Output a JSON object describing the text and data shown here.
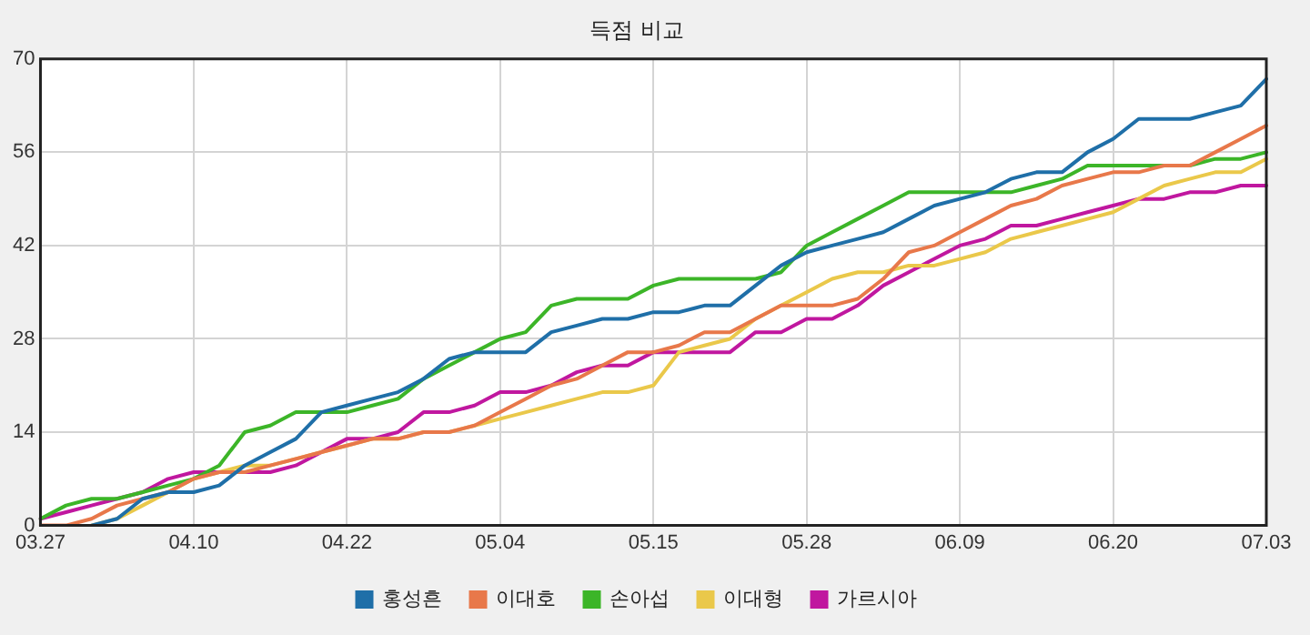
{
  "chart_data": {
    "type": "line",
    "title": "득점 비교",
    "categories": [
      "03.27",
      null,
      null,
      null,
      null,
      null,
      "04.10",
      null,
      null,
      null,
      null,
      null,
      "04.22",
      null,
      null,
      null,
      null,
      null,
      "05.04",
      null,
      null,
      null,
      null,
      null,
      "05.15",
      null,
      null,
      null,
      null,
      null,
      "05.28",
      null,
      null,
      null,
      null,
      null,
      "06.09",
      null,
      null,
      null,
      null,
      null,
      "06.20",
      null,
      null,
      null,
      null,
      null,
      "07.03"
    ],
    "series": [
      {
        "name": "홍성흔",
        "color": "#1f6fa8",
        "values": [
          null,
          null,
          0,
          1,
          4,
          5,
          5,
          6,
          9,
          11,
          13,
          17,
          18,
          19,
          20,
          22,
          25,
          26,
          26,
          26,
          29,
          30,
          31,
          31,
          32,
          32,
          33,
          33,
          36,
          39,
          41,
          42,
          43,
          44,
          46,
          48,
          49,
          50,
          52,
          53,
          53,
          56,
          58,
          61,
          61,
          61,
          62,
          63,
          67
        ]
      },
      {
        "name": "이대호",
        "color": "#e8784a",
        "values": [
          0,
          0,
          1,
          3,
          4,
          5,
          7,
          8,
          8,
          9,
          10,
          11,
          12,
          13,
          13,
          14,
          14,
          15,
          17,
          19,
          21,
          22,
          24,
          26,
          26,
          27,
          29,
          29,
          31,
          33,
          33,
          33,
          34,
          37,
          41,
          42,
          44,
          46,
          48,
          49,
          51,
          52,
          53,
          53,
          54,
          54,
          56,
          58,
          60
        ]
      },
      {
        "name": "손아섭",
        "color": "#3cb528",
        "values": [
          1,
          3,
          4,
          4,
          5,
          6,
          7,
          9,
          14,
          15,
          17,
          17,
          17,
          18,
          19,
          22,
          24,
          26,
          28,
          29,
          33,
          34,
          34,
          34,
          36,
          37,
          37,
          37,
          37,
          38,
          42,
          44,
          46,
          48,
          50,
          50,
          50,
          50,
          50,
          51,
          52,
          54,
          54,
          54,
          54,
          54,
          55,
          55,
          56
        ]
      },
      {
        "name": "이대형",
        "color": "#eac84a",
        "values": [
          null,
          null,
          0,
          1,
          3,
          5,
          7,
          8,
          9,
          9,
          10,
          11,
          12,
          13,
          13,
          14,
          14,
          15,
          16,
          17,
          18,
          19,
          20,
          20,
          21,
          26,
          27,
          28,
          31,
          33,
          35,
          37,
          38,
          38,
          39,
          39,
          40,
          41,
          43,
          44,
          45,
          46,
          47,
          49,
          51,
          52,
          53,
          53,
          55
        ]
      },
      {
        "name": "가르시아",
        "color": "#c0179f",
        "values": [
          1,
          2,
          3,
          4,
          5,
          7,
          8,
          8,
          8,
          8,
          9,
          11,
          13,
          13,
          14,
          17,
          17,
          18,
          20,
          20,
          21,
          23,
          24,
          24,
          26,
          26,
          26,
          26,
          29,
          29,
          31,
          31,
          33,
          36,
          38,
          40,
          42,
          43,
          45,
          45,
          46,
          47,
          48,
          49,
          49,
          50,
          50,
          51,
          51
        ]
      }
    ],
    "ylim": [
      0,
      70
    ],
    "yticks": [
      0,
      14,
      28,
      42,
      56,
      70
    ],
    "grid": true,
    "legend": "bottom",
    "marker": "none",
    "line_style": "solid"
  }
}
